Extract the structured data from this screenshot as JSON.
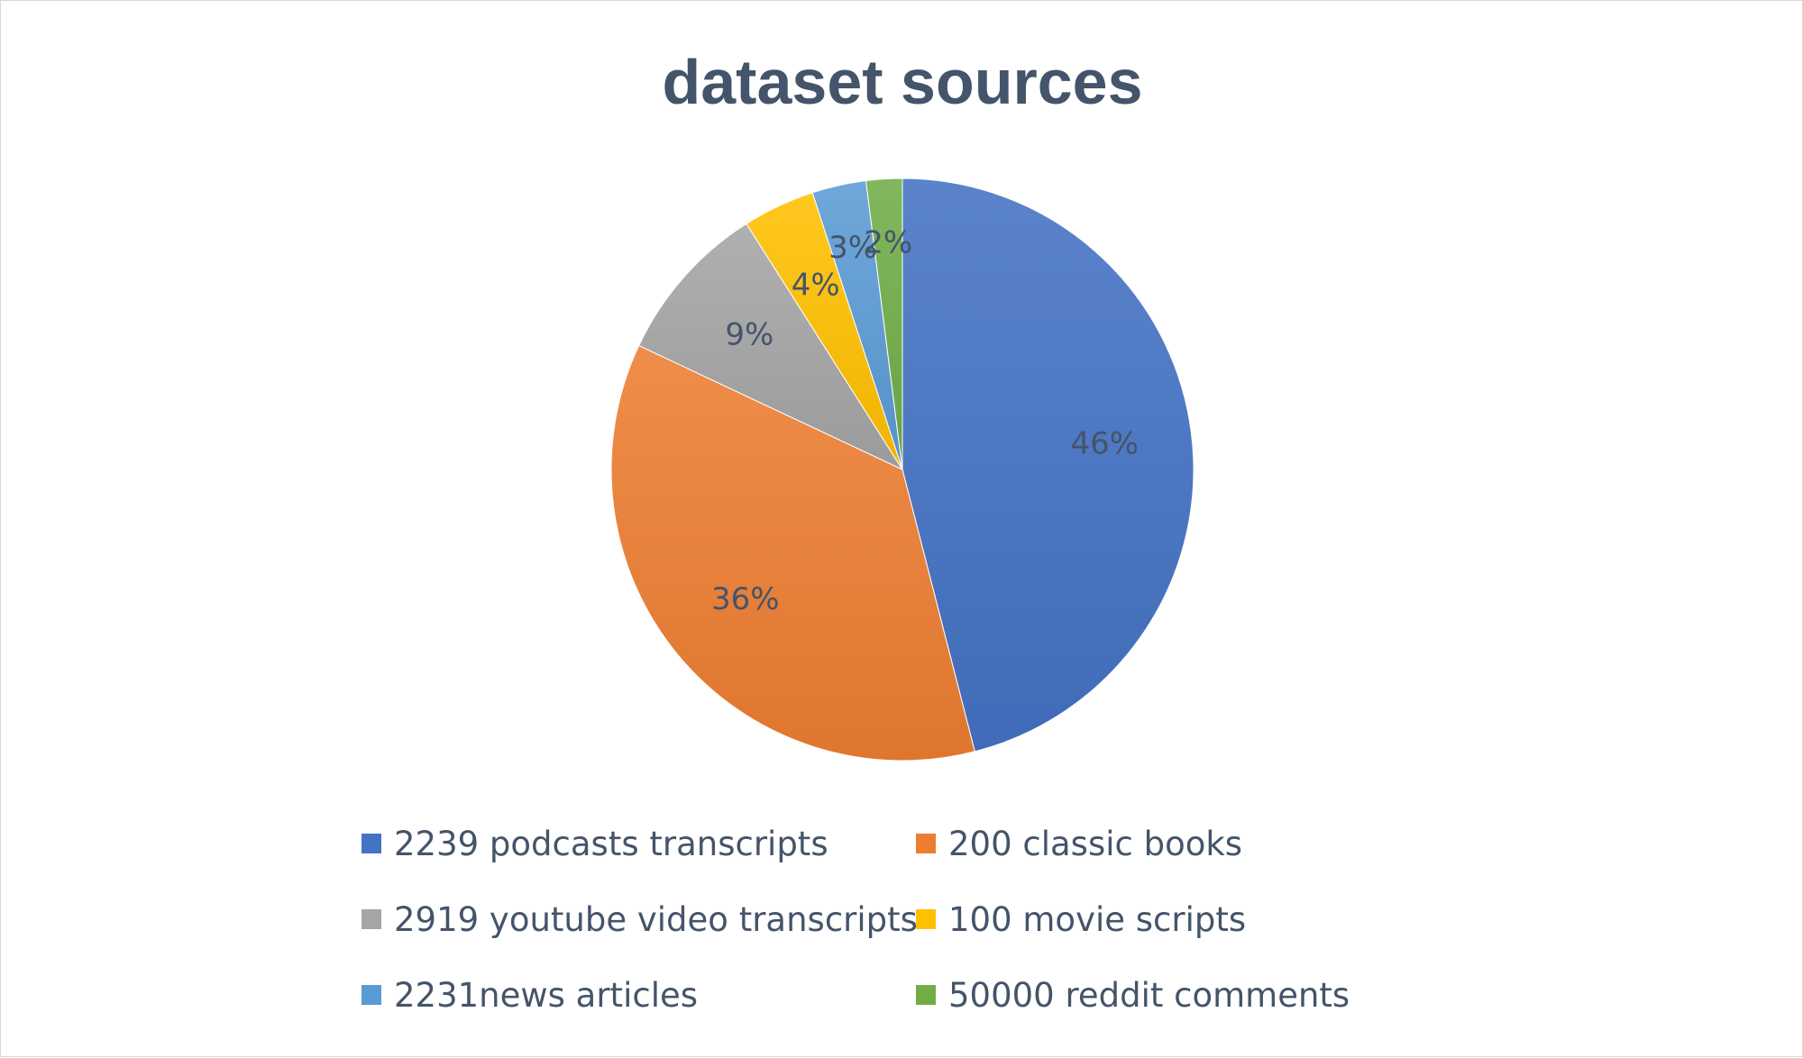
{
  "chart_data": {
    "type": "pie",
    "title": "dataset sources",
    "legend_position": "bottom",
    "slices": [
      {
        "label": "2239 podcasts transcripts",
        "value": 46,
        "data_label": "46%",
        "color": "#4472c4"
      },
      {
        "label": "200 classic books",
        "value": 36,
        "data_label": "36%",
        "color": "#ed7d31"
      },
      {
        "label": "2919 youtube video transcripts",
        "value": 9,
        "data_label": "9%",
        "color": "#a5a5a5"
      },
      {
        "label": "100 movie scripts",
        "value": 4,
        "data_label": "4%",
        "color": "#ffc000"
      },
      {
        "label": "2231news articles",
        "value": 3,
        "data_label": "3%",
        "color": "#5b9bd5"
      },
      {
        "label": "50000 reddit comments",
        "value": 2,
        "data_label": "2%",
        "color": "#70ad47"
      }
    ]
  },
  "colors": {
    "text": "#44546a",
    "border": "#d9d9d9"
  }
}
